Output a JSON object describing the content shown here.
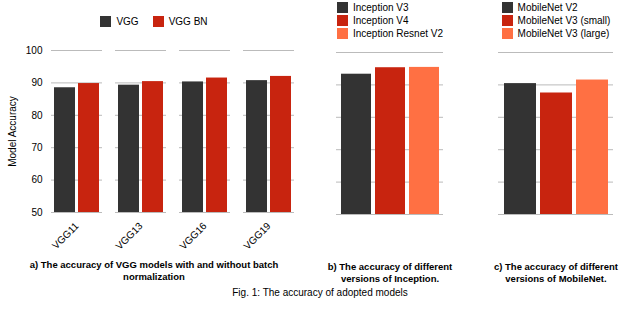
{
  "caption": "Fig. 1: The accuracy of adopted models",
  "chart_data": [
    {
      "type": "bar",
      "title": "a) The accuracy of VGG models with and without batch normalization",
      "ylabel": "Model Accuracy",
      "categories": [
        "VGG11",
        "VGG13",
        "VGG16",
        "VGG19"
      ],
      "series": [
        {
          "name": "VGG",
          "color": "#333333",
          "values": [
            88.5,
            89.3,
            90.3,
            90.7
          ]
        },
        {
          "name": "VGG BN",
          "color": "#c8240f",
          "values": [
            89.8,
            90.4,
            91.5,
            92.0
          ]
        }
      ],
      "ylim": [
        50,
        100
      ],
      "yticks": [
        50,
        60,
        70,
        80,
        90,
        100
      ],
      "grid": true,
      "legend": "top"
    },
    {
      "type": "bar",
      "title": "b) The accuracy of different versions of Inception.",
      "categories": [
        null
      ],
      "series": [
        {
          "name": "Inception V3",
          "color": "#333333",
          "values": [
            93.3
          ]
        },
        {
          "name": "Inception V4",
          "color": "#c8240f",
          "values": [
            95.3
          ]
        },
        {
          "name": "Inception Resnet V2",
          "color": "#ff7043",
          "values": [
            95.4
          ]
        }
      ],
      "ylim": [
        50,
        100
      ],
      "yticks": [
        50,
        60,
        70,
        80,
        90,
        100
      ],
      "grid": true,
      "legend": "top",
      "tick_labels": false
    },
    {
      "type": "bar",
      "title": "c) The accuracy of different versions of MobileNet.",
      "categories": [
        null
      ],
      "series": [
        {
          "name": "MobileNet V2",
          "color": "#333333",
          "values": [
            90.4
          ]
        },
        {
          "name": "MobileNet V3 (small)",
          "color": "#c8240f",
          "values": [
            87.5
          ]
        },
        {
          "name": "MobileNet V3 (large)",
          "color": "#ff7043",
          "values": [
            91.5
          ]
        }
      ],
      "ylim": [
        50,
        100
      ],
      "yticks": [
        50,
        60,
        70,
        80,
        90,
        100
      ],
      "grid": true,
      "legend": "top",
      "tick_labels": false
    }
  ]
}
